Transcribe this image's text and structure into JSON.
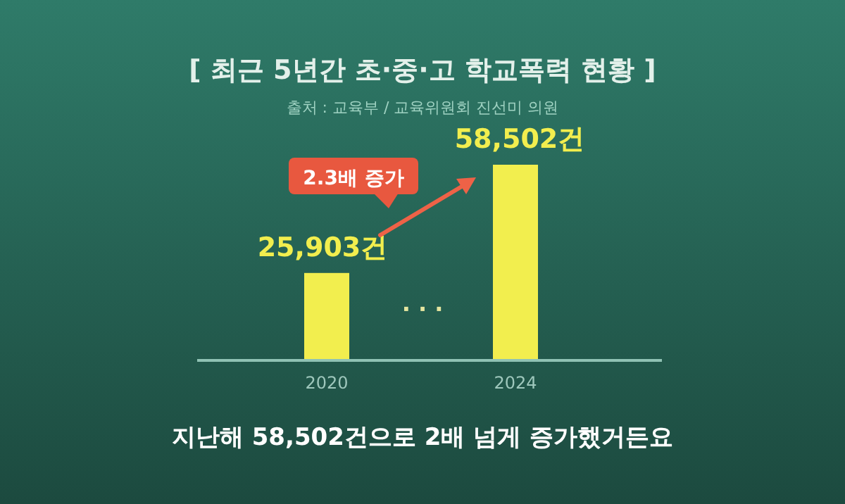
{
  "chart_data": {
    "type": "bar",
    "title": "[ 최근 5년간 초·중·고 학교폭력 현황 ]",
    "subtitle": "출처 : 교육부 / 교육위원회 진선미 의원",
    "categories": [
      "2020",
      "2024"
    ],
    "values": [
      25903,
      58502
    ],
    "color": "#f2ee4e",
    "value_labels": [
      "25,903건",
      "58,502건"
    ],
    "annotations": [
      "2.3배 증가",
      "· · ·",
      "지난해 58,502건으로 2배 넘게 증가했거든요"
    ]
  }
}
